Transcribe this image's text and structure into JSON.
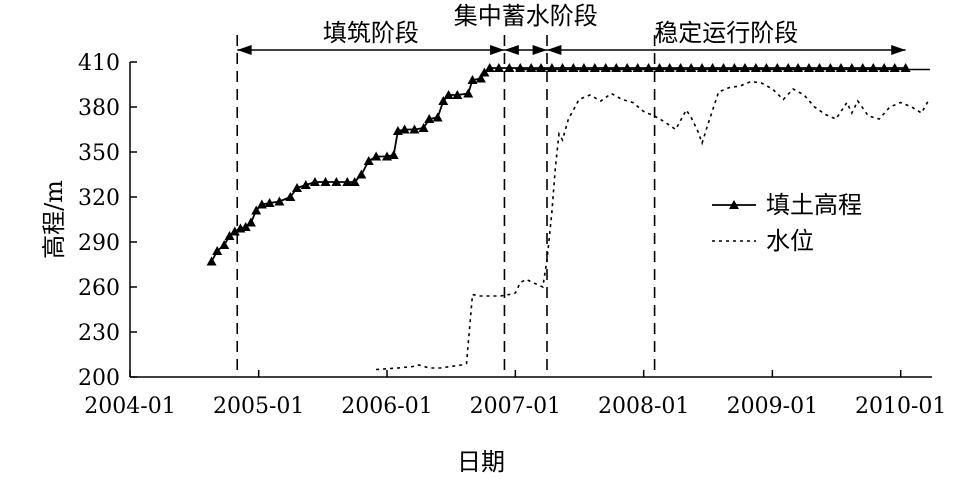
{
  "chart_data": {
    "type": "line",
    "xlabel": "日期",
    "ylabel": "高程/m",
    "ylim": [
      200,
      410
    ],
    "yticks": [
      200,
      230,
      260,
      290,
      320,
      350,
      380,
      410
    ],
    "xlim": [
      "2004-01-01",
      "2010-03-31"
    ],
    "xticks": [
      "2004-01",
      "2005-01",
      "2006-01",
      "2007-01",
      "2008-01",
      "2009-01",
      "2010-01"
    ],
    "grid": false,
    "legend_position": "right",
    "phases": [
      {
        "label": "填筑阶段",
        "start": "2004-11-01",
        "end": "2006-12-01"
      },
      {
        "label": "集中蓄水阶段",
        "start": "2006-12-01",
        "end": "2007-04-01"
      },
      {
        "label": "稳定运行阶段",
        "start": "2007-04-01",
        "end": "2010-01-15"
      }
    ],
    "phase_dividers": [
      "2004-11-01",
      "2006-12-01",
      "2007-04-01",
      "2008-02-01"
    ],
    "reference_line": {
      "y": 405,
      "from": "2007-01-01",
      "to": "2010-03-25"
    },
    "series": [
      {
        "name": "填土高程",
        "style": "solid-triangle",
        "points": [
          [
            "2004-08-20",
            277
          ],
          [
            "2004-09-05",
            284
          ],
          [
            "2004-09-25",
            288
          ],
          [
            "2004-10-10",
            294
          ],
          [
            "2004-10-25",
            297
          ],
          [
            "2004-11-10",
            299
          ],
          [
            "2004-11-25",
            300
          ],
          [
            "2004-12-10",
            303
          ],
          [
            "2004-12-25",
            311
          ],
          [
            "2005-01-10",
            315
          ],
          [
            "2005-02-01",
            316
          ],
          [
            "2005-03-01",
            317
          ],
          [
            "2005-04-01",
            320
          ],
          [
            "2005-04-20",
            326
          ],
          [
            "2005-05-15",
            328
          ],
          [
            "2005-06-10",
            330
          ],
          [
            "2005-07-10",
            330
          ],
          [
            "2005-08-10",
            330
          ],
          [
            "2005-09-10",
            330
          ],
          [
            "2005-10-01",
            330
          ],
          [
            "2005-10-20",
            335
          ],
          [
            "2005-11-10",
            344
          ],
          [
            "2005-12-01",
            347
          ],
          [
            "2006-01-01",
            347
          ],
          [
            "2006-01-20",
            348
          ],
          [
            "2006-02-01",
            364
          ],
          [
            "2006-02-20",
            365
          ],
          [
            "2006-03-20",
            365
          ],
          [
            "2006-04-15",
            366
          ],
          [
            "2006-05-01",
            372
          ],
          [
            "2006-05-25",
            373
          ],
          [
            "2006-06-10",
            384
          ],
          [
            "2006-06-25",
            388
          ],
          [
            "2006-07-20",
            388
          ],
          [
            "2006-08-20",
            389
          ],
          [
            "2006-09-01",
            398
          ],
          [
            "2006-09-25",
            399
          ],
          [
            "2006-10-05",
            403
          ],
          [
            "2006-10-20",
            406
          ],
          [
            "2006-11-15",
            406
          ],
          [
            "2006-12-15",
            406
          ],
          [
            "2007-01-15",
            406
          ],
          [
            "2007-02-15",
            406
          ],
          [
            "2007-03-15",
            406
          ],
          [
            "2007-04-15",
            406
          ],
          [
            "2007-05-15",
            406
          ],
          [
            "2007-06-15",
            406
          ],
          [
            "2007-07-15",
            406
          ],
          [
            "2007-08-15",
            406
          ],
          [
            "2007-09-15",
            406
          ],
          [
            "2007-10-15",
            406
          ],
          [
            "2007-11-15",
            406
          ],
          [
            "2007-12-15",
            406
          ],
          [
            "2008-01-15",
            406
          ],
          [
            "2008-02-15",
            406
          ],
          [
            "2008-03-15",
            406
          ],
          [
            "2008-04-15",
            406
          ],
          [
            "2008-05-15",
            406
          ],
          [
            "2008-06-15",
            406
          ],
          [
            "2008-07-15",
            406
          ],
          [
            "2008-08-15",
            406
          ],
          [
            "2008-09-15",
            406
          ],
          [
            "2008-10-15",
            406
          ],
          [
            "2008-11-15",
            406
          ],
          [
            "2008-12-15",
            406
          ],
          [
            "2009-01-15",
            406
          ],
          [
            "2009-02-15",
            406
          ],
          [
            "2009-03-15",
            406
          ],
          [
            "2009-04-15",
            406
          ],
          [
            "2009-05-15",
            406
          ],
          [
            "2009-06-15",
            406
          ],
          [
            "2009-07-15",
            406
          ],
          [
            "2009-08-15",
            406
          ],
          [
            "2009-09-15",
            406
          ],
          [
            "2009-10-15",
            406
          ],
          [
            "2009-11-15",
            406
          ],
          [
            "2009-12-15",
            406
          ],
          [
            "2010-01-15",
            406
          ]
        ]
      },
      {
        "name": "水位",
        "style": "dotted",
        "points": [
          [
            "2005-12-01",
            205
          ],
          [
            "2006-02-01",
            206
          ],
          [
            "2006-03-15",
            207
          ],
          [
            "2006-04-01",
            208
          ],
          [
            "2006-05-01",
            206
          ],
          [
            "2006-06-01",
            206
          ],
          [
            "2006-07-01",
            207
          ],
          [
            "2006-08-01",
            208
          ],
          [
            "2006-08-15",
            209
          ],
          [
            "2006-09-01",
            255
          ],
          [
            "2006-09-20",
            254
          ],
          [
            "2006-10-20",
            254
          ],
          [
            "2006-11-20",
            254
          ],
          [
            "2006-12-15",
            255
          ],
          [
            "2007-01-01",
            256
          ],
          [
            "2007-01-15",
            263
          ],
          [
            "2007-02-01",
            265
          ],
          [
            "2007-03-01",
            262
          ],
          [
            "2007-03-20",
            260
          ],
          [
            "2007-04-01",
            278
          ],
          [
            "2007-04-15",
            310
          ],
          [
            "2007-04-25",
            340
          ],
          [
            "2007-05-05",
            362
          ],
          [
            "2007-05-15",
            358
          ],
          [
            "2007-06-01",
            372
          ],
          [
            "2007-06-15",
            378
          ],
          [
            "2007-07-01",
            385
          ],
          [
            "2007-08-01",
            388
          ],
          [
            "2007-09-01",
            384
          ],
          [
            "2007-10-01",
            389
          ],
          [
            "2007-11-01",
            385
          ],
          [
            "2007-12-01",
            383
          ],
          [
            "2008-01-01",
            377
          ],
          [
            "2008-02-01",
            374
          ],
          [
            "2008-03-01",
            370
          ],
          [
            "2008-04-01",
            365
          ],
          [
            "2008-05-01",
            378
          ],
          [
            "2008-05-15",
            373
          ],
          [
            "2008-06-01",
            365
          ],
          [
            "2008-06-15",
            356
          ],
          [
            "2008-07-01",
            368
          ],
          [
            "2008-08-01",
            390
          ],
          [
            "2008-09-01",
            393
          ],
          [
            "2008-10-01",
            394
          ],
          [
            "2008-11-01",
            397
          ],
          [
            "2008-12-01",
            396
          ],
          [
            "2009-01-01",
            392
          ],
          [
            "2009-02-01",
            385
          ],
          [
            "2009-03-01",
            392
          ],
          [
            "2009-04-01",
            388
          ],
          [
            "2009-05-01",
            380
          ],
          [
            "2009-06-01",
            375
          ],
          [
            "2009-07-01",
            372
          ],
          [
            "2009-08-01",
            383
          ],
          [
            "2009-08-15",
            376
          ],
          [
            "2009-09-01",
            384
          ],
          [
            "2009-10-01",
            374
          ],
          [
            "2009-11-01",
            372
          ],
          [
            "2009-12-01",
            380
          ],
          [
            "2010-01-01",
            383
          ],
          [
            "2010-02-01",
            380
          ],
          [
            "2010-03-01",
            376
          ],
          [
            "2010-03-20",
            384
          ]
        ]
      }
    ]
  }
}
